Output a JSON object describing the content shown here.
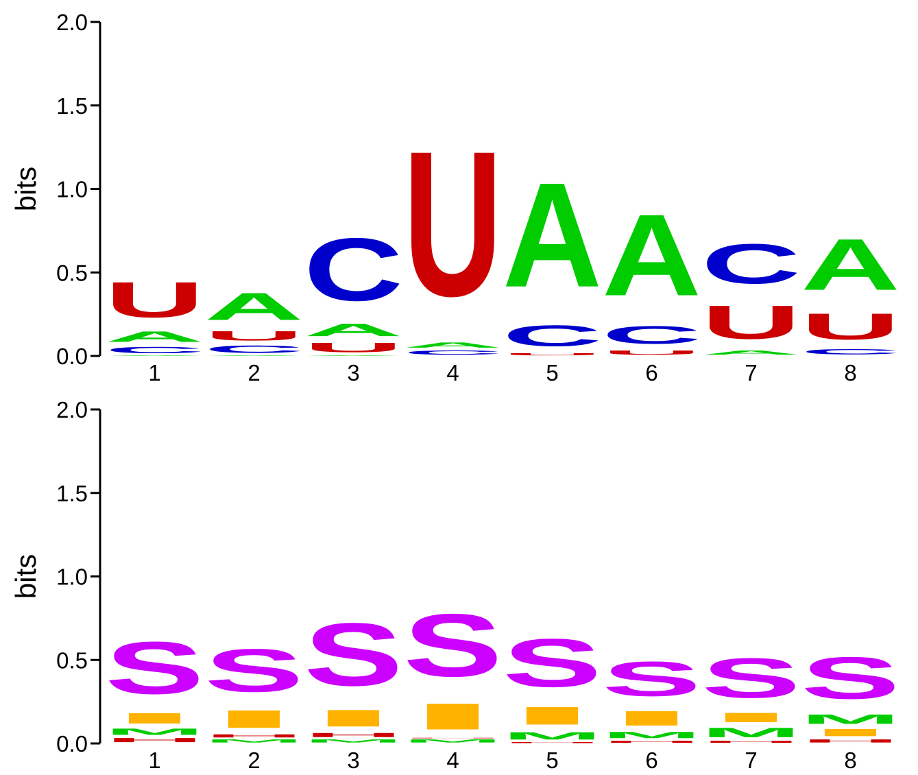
{
  "colors": {
    "A": "#00cc00",
    "C": "#0000cc",
    "U": "#cc0000",
    "I": "#ffb300",
    "M": "#00cc00",
    "H": "#cc0000",
    "S": "#cc00ff"
  },
  "chart_data": [
    {
      "type": "sequence-logo",
      "ylabel": "bits",
      "ylim": [
        0,
        2.0
      ],
      "yticks": [
        "0.0",
        "0.5",
        "1.0",
        "1.5",
        "2.0"
      ],
      "positions": [
        "1",
        "2",
        "3",
        "4",
        "5",
        "6",
        "7",
        "8"
      ],
      "stacks": [
        [
          {
            "letter": "A",
            "bits": 0.005
          },
          {
            "letter": "C",
            "bits": 0.06
          },
          {
            "letter": "A",
            "bits": 0.1
          },
          {
            "letter": "U",
            "bits": 0.34
          }
        ],
        [
          {
            "letter": "A",
            "bits": 0.005
          },
          {
            "letter": "C",
            "bits": 0.07
          },
          {
            "letter": "U",
            "bits": 0.09
          },
          {
            "letter": "A",
            "bits": 0.26
          }
        ],
        [
          {
            "letter": "A",
            "bits": 0.005
          },
          {
            "letter": "U",
            "bits": 0.09
          },
          {
            "letter": "A",
            "bits": 0.12
          },
          {
            "letter": "C",
            "bits": 0.6
          }
        ],
        [
          {
            "letter": "C",
            "bits": 0.04
          },
          {
            "letter": "A",
            "bits": 0.05
          },
          {
            "letter": "U",
            "bits": 1.39
          }
        ],
        [
          {
            "letter": "U",
            "bits": 0.02
          },
          {
            "letter": "C",
            "bits": 0.2
          },
          {
            "letter": "A",
            "bits": 1.0
          }
        ],
        [
          {
            "letter": "U",
            "bits": 0.04
          },
          {
            "letter": "C",
            "bits": 0.17
          },
          {
            "letter": "A",
            "bits": 0.78
          }
        ],
        [
          {
            "letter": "A",
            "bits": 0.04
          },
          {
            "letter": "U",
            "bits": 0.32
          },
          {
            "letter": "C",
            "bits": 0.38
          }
        ],
        [
          {
            "letter": "C",
            "bits": 0.05
          },
          {
            "letter": "U",
            "bits": 0.25
          },
          {
            "letter": "A",
            "bits": 0.49
          }
        ]
      ]
    },
    {
      "type": "sequence-logo",
      "ylabel": "bits",
      "ylim": [
        0,
        2.0
      ],
      "yticks": [
        "0.0",
        "0.5",
        "1.0",
        "1.5",
        "2.0"
      ],
      "positions": [
        "1",
        "2",
        "3",
        "4",
        "5",
        "6",
        "7",
        "8"
      ],
      "stacks": [
        [
          {
            "letter": "H",
            "bits": 0.04
          },
          {
            "letter": "M",
            "bits": 0.06
          },
          {
            "letter": "I",
            "bits": 0.1
          },
          {
            "letter": "S",
            "bits": 0.5
          }
        ],
        [
          {
            "letter": "M",
            "bits": 0.03
          },
          {
            "letter": "H",
            "bits": 0.03
          },
          {
            "letter": "I",
            "bits": 0.17
          },
          {
            "letter": "S",
            "bits": 0.41
          }
        ],
        [
          {
            "letter": "M",
            "bits": 0.03
          },
          {
            "letter": "H",
            "bits": 0.04
          },
          {
            "letter": "I",
            "bits": 0.16
          },
          {
            "letter": "S",
            "bits": 0.6
          }
        ],
        [
          {
            "letter": "M",
            "bits": 0.03
          },
          {
            "letter": "H",
            "bits": 0.005
          },
          {
            "letter": "I",
            "bits": 0.25
          },
          {
            "letter": "S",
            "bits": 0.6
          }
        ],
        [
          {
            "letter": "H",
            "bits": 0.01
          },
          {
            "letter": "M",
            "bits": 0.07
          },
          {
            "letter": "I",
            "bits": 0.17
          },
          {
            "letter": "S",
            "bits": 0.46
          }
        ],
        [
          {
            "letter": "H",
            "bits": 0.02
          },
          {
            "letter": "M",
            "bits": 0.06
          },
          {
            "letter": "I",
            "bits": 0.14
          },
          {
            "letter": "S",
            "bits": 0.33
          }
        ],
        [
          {
            "letter": "H",
            "bits": 0.02
          },
          {
            "letter": "M",
            "bits": 0.09
          },
          {
            "letter": "I",
            "bits": 0.09
          },
          {
            "letter": "S",
            "bits": 0.38
          }
        ],
        [
          {
            "letter": "H",
            "bits": 0.03
          },
          {
            "letter": "I",
            "bits": 0.07
          },
          {
            "letter": "M",
            "bits": 0.09
          },
          {
            "letter": "S",
            "bits": 0.4
          }
        ]
      ]
    }
  ]
}
